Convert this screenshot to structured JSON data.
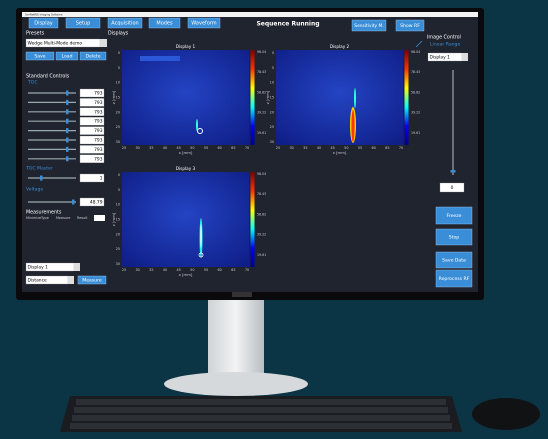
{
  "window_title": "SimNetRBI Imaging Software",
  "menu": [
    "Display",
    "Setup",
    "Acquisition",
    "Modes",
    "Waveform"
  ],
  "status": "Sequence Running",
  "top_buttons": [
    "Sensitivity M.",
    "Show RF"
  ],
  "left": {
    "presets_label": "Presets",
    "preset": "Wedge Multi-Mode demo",
    "preset_buttons": [
      "Save",
      "Load",
      "Delete"
    ],
    "standard_controls": "Standard Controls",
    "tgc": "TGC",
    "tgc_values": [
      "793",
      "793",
      "793",
      "793",
      "793",
      "793",
      "793",
      "793"
    ],
    "tgc_master": "TGC Master",
    "tgc_master_value": "1",
    "voltage": "Voltage",
    "voltage_value": "48.79",
    "measurements": "Measurements",
    "measurement_columns": [
      "Minimize",
      "Type",
      "Measure",
      "Result"
    ],
    "display_select": "Display 1",
    "measure_type": "Distance",
    "measure_button": "Measure"
  },
  "displays_label": "Displays",
  "displays": [
    {
      "title": "Display 1",
      "xlabel": "x [mm]",
      "zlabel": "z [mm]",
      "xticks": [
        "25",
        "30",
        "35",
        "40",
        "45",
        "50",
        "55",
        "60",
        "65",
        "70"
      ],
      "zticks": [
        "0",
        "5",
        "10",
        "15",
        "20",
        "25",
        "30"
      ],
      "colorbar": [
        "98.04",
        "78.43",
        "58.82",
        "39.22",
        "19.61"
      ]
    },
    {
      "title": "Display 2",
      "xlabel": "x [mm]",
      "zlabel": "z [mm]",
      "xticks": [
        "25",
        "30",
        "35",
        "40",
        "45",
        "50",
        "55",
        "60",
        "65",
        "70"
      ],
      "zticks": [
        "0",
        "5",
        "10",
        "15",
        "20",
        "25",
        "30"
      ],
      "colorbar": [
        "98.04",
        "78.43",
        "58.82",
        "39.22",
        "19.61"
      ]
    },
    {
      "title": "Display 3",
      "xlabel": "x [mm]",
      "zlabel": "z [mm]",
      "xticks": [
        "25",
        "30",
        "35",
        "40",
        "45",
        "50",
        "55",
        "60",
        "65",
        "70"
      ],
      "zticks": [
        "0",
        "5",
        "10",
        "15",
        "20",
        "25",
        "30"
      ],
      "colorbar": [
        "98.04",
        "78.43",
        "58.82",
        "39.22",
        "19.61"
      ]
    }
  ],
  "right": {
    "image_control": "Image Control",
    "linear_range": "Linear Range",
    "display_select": "Display 1",
    "value": "0",
    "buttons": [
      "Freeze",
      "Stop",
      "Save Data",
      "Reprocess RF"
    ]
  }
}
